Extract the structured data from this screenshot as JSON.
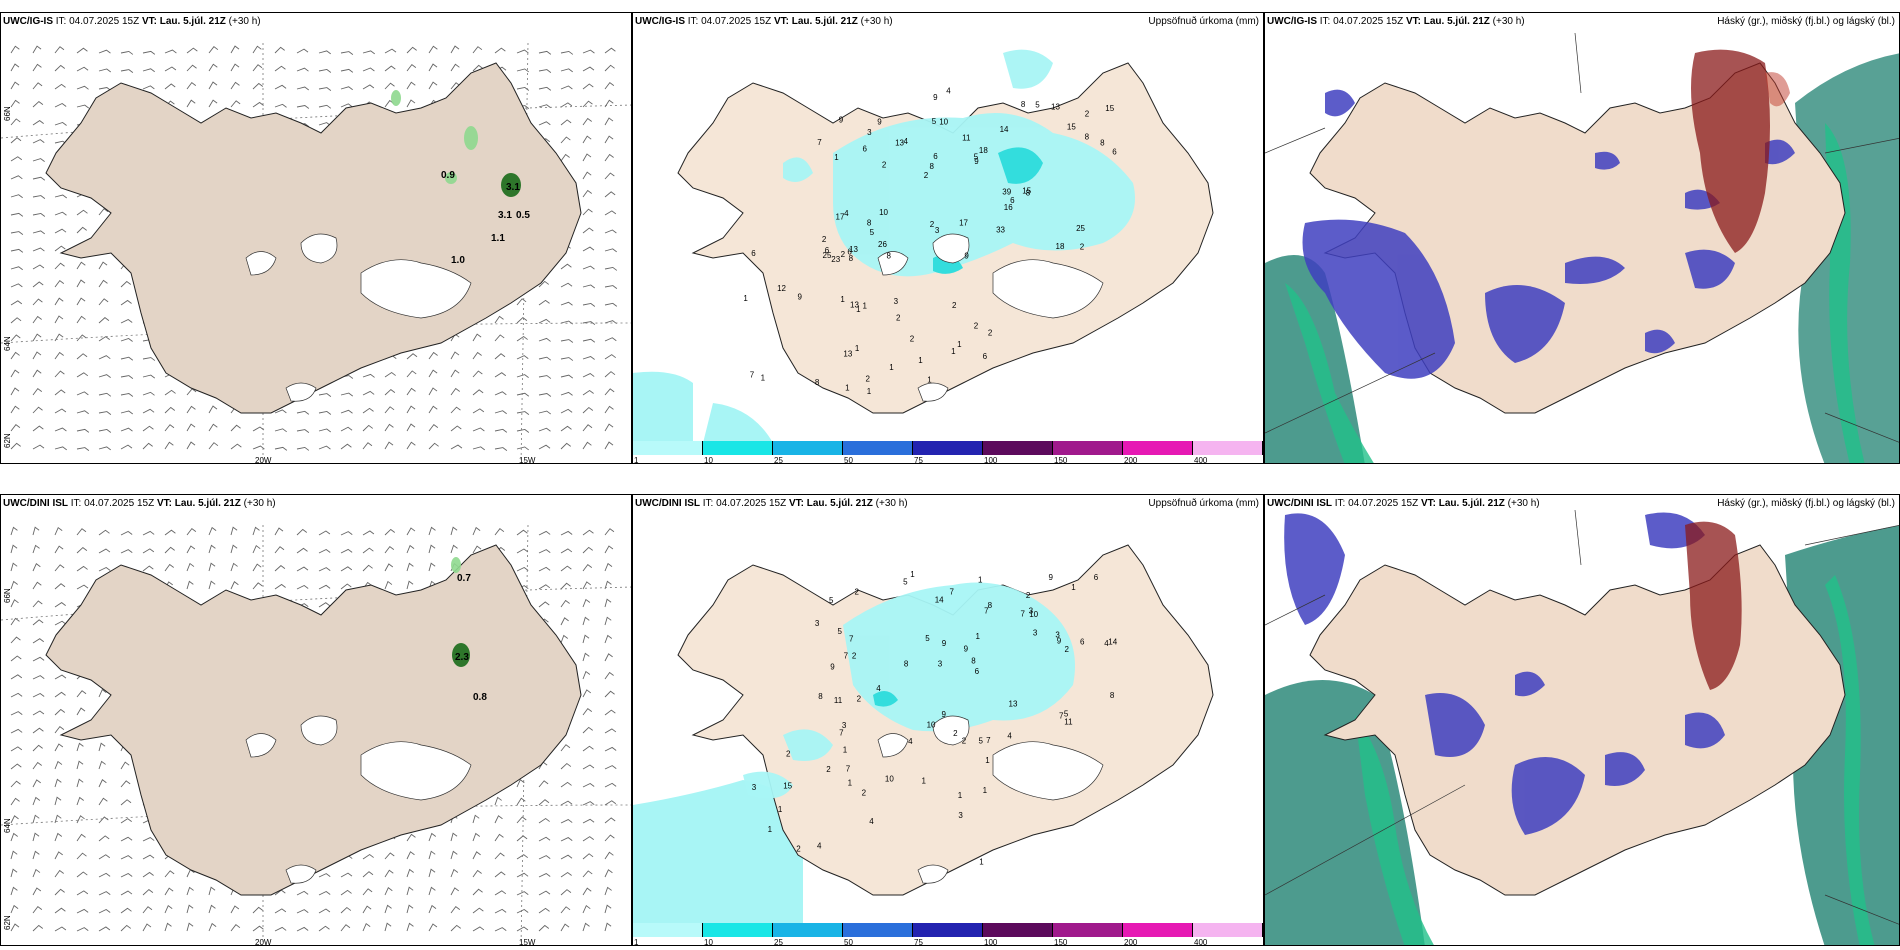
{
  "rows": [
    {
      "id": "top",
      "model": "UWC/IG-IS",
      "it_prefix": "IT:",
      "it_value": "04.07.2025 15Z",
      "vt_prefix": "VT:",
      "vt_value": "Lau. 5.júl. 21Z",
      "lead": "(+30 h)",
      "wind_values": [
        "0.9",
        "3.1",
        "3.1",
        "0.5",
        "1.1",
        "1.0"
      ],
      "precip_values": [
        "2",
        "1",
        "2",
        "2",
        "14",
        "13",
        "5",
        "11",
        "4",
        "4",
        "2",
        "5",
        "10",
        "18",
        "8",
        "9",
        "9",
        "6",
        "39",
        "8",
        "8",
        "2",
        "6",
        "9",
        "8",
        "10",
        "18",
        "25",
        "15",
        "9",
        "13",
        "6",
        "16",
        "26",
        "8",
        "5",
        "6",
        "3",
        "9",
        "17",
        "15",
        "15",
        "6",
        "33",
        "8",
        "8",
        "25",
        "17",
        "13",
        "4",
        "2",
        "7",
        "3",
        "5",
        "6",
        "8",
        "23",
        "13",
        "6",
        "13",
        "8",
        "2",
        "9",
        "7",
        "6",
        "12",
        "2",
        "1",
        "2",
        "1",
        "1",
        "2",
        "1",
        "1",
        "2",
        "1",
        "1",
        "1",
        "1",
        "2",
        "2",
        "3",
        "1",
        "1",
        "1",
        "1"
      ]
    },
    {
      "id": "bottom",
      "model": "UWC/DINI ISL",
      "it_prefix": "IT:",
      "it_value": "04.07.2025 15Z",
      "vt_prefix": "VT:",
      "vt_value": "Lau. 5.júl. 21Z",
      "lead": "(+30 h)",
      "wind_values": [
        "0.7",
        "2.3",
        "0.8"
      ],
      "precip_values": [
        "1",
        "2",
        "4",
        "3",
        "6",
        "2",
        "5",
        "7",
        "9",
        "7",
        "9",
        "7",
        "5",
        "8",
        "5",
        "7",
        "9",
        "9",
        "3",
        "4",
        "7",
        "7",
        "14",
        "6",
        "8",
        "5",
        "9",
        "9",
        "5",
        "11",
        "7",
        "8",
        "2",
        "5",
        "13",
        "8",
        "3",
        "10",
        "6",
        "7",
        "3",
        "4",
        "4",
        "2",
        "2",
        "10",
        "11",
        "3",
        "3",
        "8",
        "14",
        "2",
        "1",
        "1",
        "1",
        "2",
        "1",
        "2",
        "2",
        "7",
        "1",
        "3",
        "2",
        "4",
        "4",
        "3",
        "1",
        "1",
        "2",
        "1",
        "1",
        "1",
        "1",
        "1",
        "10",
        "15"
      ]
    }
  ],
  "precip_title": "Uppsöfnuð úrkoma (mm)",
  "cloud_title": "Háský (gr.), miðský (fj.bl.) og lágský (bl.)",
  "axis_labels": {
    "lon_20w": "20W",
    "lon_15w": "15W",
    "lat_66n": "66N",
    "lat_64n": "64N",
    "lat_62n": "62N"
  },
  "colorbar": {
    "ticks": [
      "1",
      "10",
      "25",
      "50",
      "75",
      "100",
      "150",
      "200",
      "400"
    ],
    "colors": [
      "#b8fafa",
      "#19e6e6",
      "#19b4e6",
      "#2a6fdb",
      "#2323b0",
      "#5c0a5c",
      "#a0198c",
      "#e619b4",
      "#f5b4f0"
    ]
  },
  "colors": {
    "land": "#f5e6d7",
    "land_gray": "#e3d4c6",
    "precip_light": "#a8f5f5",
    "precip_mid": "#33dddd",
    "cloud_high": "#8a1a1a",
    "cloud_mid": "#3f3fc0",
    "cloud_low": "#1a8c6a",
    "ocean_cloud": "#2e8a7a"
  }
}
